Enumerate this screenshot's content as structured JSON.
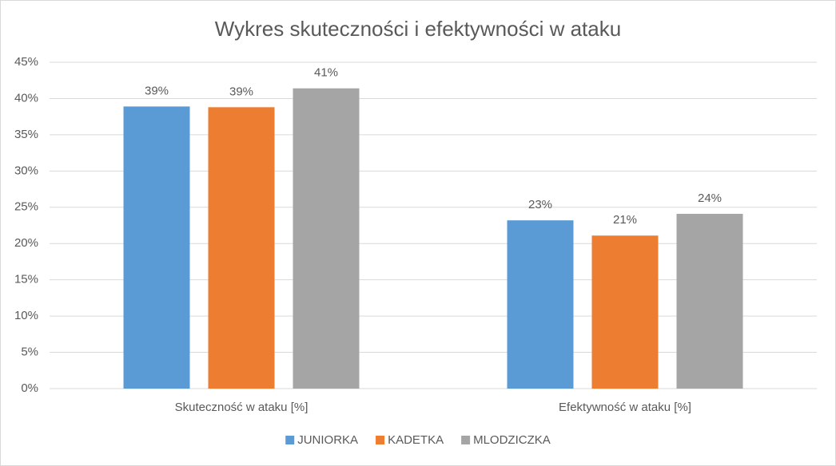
{
  "chart_data": {
    "type": "bar",
    "title": "Wykres skuteczności i efektywności w ataku",
    "categories": [
      "Skuteczność w ataku [%]",
      "Efektywność w ataku [%]"
    ],
    "series": [
      {
        "name": "JUNIORKA",
        "color": "#5b9bd5",
        "values": [
          38.9,
          23.2
        ],
        "value_labels": [
          "39%",
          "23%"
        ]
      },
      {
        "name": "KADETKA",
        "color": "#ed7d31",
        "values": [
          38.8,
          21.1
        ],
        "value_labels": [
          "39%",
          "21%"
        ]
      },
      {
        "name": "MLODZICZKA",
        "color": "#a5a5a5",
        "values": [
          41.4,
          24.1
        ],
        "value_labels": [
          "41%",
          "24%"
        ]
      }
    ],
    "ylim": [
      0,
      45
    ],
    "yticks": [
      {
        "value": 0,
        "label": "0%"
      },
      {
        "value": 5,
        "label": "5%"
      },
      {
        "value": 10,
        "label": "10%"
      },
      {
        "value": 15,
        "label": "15%"
      },
      {
        "value": 20,
        "label": "20%"
      },
      {
        "value": 25,
        "label": "25%"
      },
      {
        "value": 30,
        "label": "30%"
      },
      {
        "value": 35,
        "label": "35%"
      },
      {
        "value": 40,
        "label": "40%"
      },
      {
        "value": 45,
        "label": "45%"
      }
    ],
    "grid": true,
    "legend": "bottom"
  }
}
